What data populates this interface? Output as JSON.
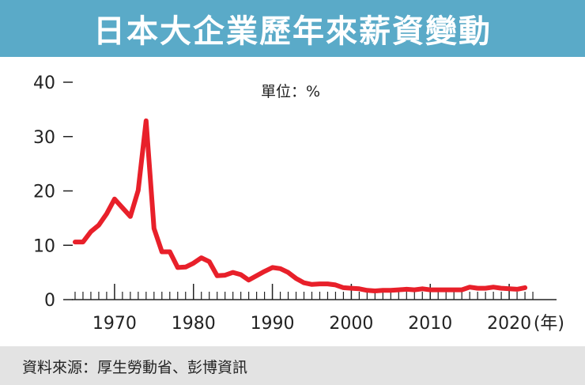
{
  "header": {
    "title": "日本大企業歷年來薪資變動"
  },
  "footer": {
    "source": "資料來源：厚生勞動省、彭博資訊"
  },
  "colors": {
    "title_bg": "#5aaac8",
    "line": "#e8202a",
    "footer_bg": "#e3e3e3",
    "axis": "#222222"
  },
  "chart_data": {
    "type": "line",
    "title": "日本大企業歷年來薪資變動",
    "unit_label": "單位：%",
    "xlabel": "(年)",
    "ylabel": "",
    "xlim": [
      1963.5,
      2026
    ],
    "ylim": [
      0,
      40
    ],
    "x_ticks": [
      1970,
      1980,
      1990,
      2000,
      2010,
      2020
    ],
    "x_tick_labels": [
      "1970",
      "1980",
      "1990",
      "2000",
      "2010",
      "2020"
    ],
    "y_ticks": [
      0,
      10,
      20,
      30,
      40
    ],
    "y_tick_labels": [
      "0",
      "10",
      "20",
      "30",
      "40"
    ],
    "grid": false,
    "series": [
      {
        "name": "薪資變動",
        "x": [
          1965,
          1966,
          1967,
          1968,
          1969,
          1970,
          1971,
          1972,
          1973,
          1974,
          1975,
          1976,
          1977,
          1978,
          1979,
          1980,
          1981,
          1982,
          1983,
          1984,
          1985,
          1986,
          1987,
          1988,
          1989,
          1990,
          1991,
          1992,
          1993,
          1994,
          1995,
          1996,
          1997,
          1998,
          1999,
          2000,
          2001,
          2002,
          2003,
          2004,
          2005,
          2006,
          2007,
          2008,
          2009,
          2010,
          2011,
          2012,
          2013,
          2014,
          2015,
          2016,
          2017,
          2018,
          2019,
          2020,
          2021,
          2022
        ],
        "values": [
          10.6,
          10.6,
          12.5,
          13.7,
          15.8,
          18.5,
          16.9,
          15.3,
          20.1,
          32.9,
          13.1,
          8.8,
          8.8,
          5.9,
          6.0,
          6.7,
          7.7,
          7.0,
          4.4,
          4.5,
          5.0,
          4.6,
          3.6,
          4.4,
          5.2,
          5.9,
          5.7,
          5.0,
          3.9,
          3.1,
          2.8,
          2.9,
          2.9,
          2.7,
          2.2,
          2.1,
          2.0,
          1.7,
          1.6,
          1.7,
          1.7,
          1.8,
          1.9,
          1.8,
          2.0,
          1.8,
          1.8,
          1.8,
          1.8,
          1.8,
          2.3,
          2.1,
          2.1,
          2.3,
          2.1,
          2.0,
          1.9,
          2.2
        ]
      }
    ]
  }
}
